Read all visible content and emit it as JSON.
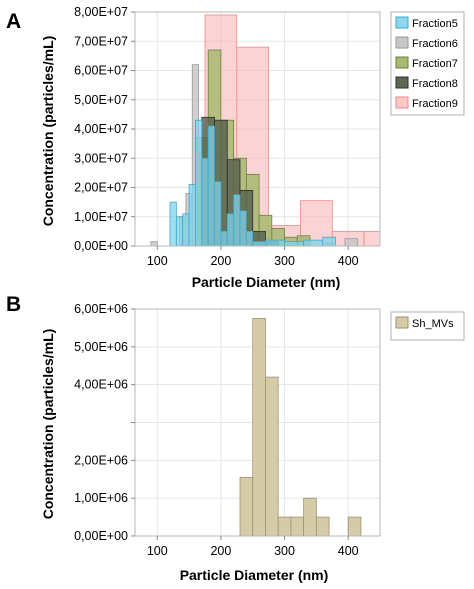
{
  "chart_data": [
    {
      "panel": "A",
      "type": "bar",
      "xlabel": "Particle Diameter (nm)",
      "ylabel": "Concentration (particles/mL)",
      "xlim": [
        65,
        450
      ],
      "ylim": [
        0,
        80000000
      ],
      "x_ticks": [
        100,
        200,
        300,
        400
      ],
      "y_ticks": [
        {
          "value": 0,
          "label": "0,00E+00"
        },
        {
          "value": 10000000,
          "label": "1,00E+07"
        },
        {
          "value": 20000000,
          "label": "2,00E+07"
        },
        {
          "value": 30000000,
          "label": "3,00E+07"
        },
        {
          "value": 40000000,
          "label": "4,00E+07"
        },
        {
          "value": 50000000,
          "label": "5,00E+07"
        },
        {
          "value": 60000000,
          "label": "6,00E+07"
        },
        {
          "value": 70000000,
          "label": "7,00E+07"
        },
        {
          "value": 80000000,
          "label": "8,00E+07"
        }
      ],
      "grid": true,
      "legend_position": "right",
      "series": [
        {
          "name": "Fraction9",
          "fill": "#f6b0b0",
          "stroke": "#f08a8a",
          "opacity": 0.55,
          "bins": [
            {
              "x0": 175,
              "x1": 225,
              "y": 79000000
            },
            {
              "x0": 225,
              "x1": 275,
              "y": 68000000
            },
            {
              "x0": 275,
              "x1": 325,
              "y": 7000000
            },
            {
              "x0": 325,
              "x1": 375,
              "y": 15500000
            },
            {
              "x0": 375,
              "x1": 425,
              "y": 5000000
            },
            {
              "x0": 425,
              "x1": 450,
              "y": 5000000
            }
          ]
        },
        {
          "name": "Fraction6",
          "fill": "#c4c4c4",
          "stroke": "#9a9a9a",
          "opacity": 0.8,
          "bins": [
            {
              "x0": 90,
              "x1": 100,
              "y": 1500000
            },
            {
              "x0": 135,
              "x1": 145,
              "y": 10000000
            },
            {
              "x0": 145,
              "x1": 155,
              "y": 18000000
            },
            {
              "x0": 155,
              "x1": 165,
              "y": 62000000
            },
            {
              "x0": 165,
              "x1": 175,
              "y": 32000000
            },
            {
              "x0": 175,
              "x1": 185,
              "y": 18000000
            },
            {
              "x0": 185,
              "x1": 195,
              "y": 9000000
            },
            {
              "x0": 195,
              "x1": 205,
              "y": 6000000
            },
            {
              "x0": 205,
              "x1": 215,
              "y": 4000000
            },
            {
              "x0": 215,
              "x1": 225,
              "y": 3000000
            },
            {
              "x0": 225,
              "x1": 255,
              "y": 2500000
            },
            {
              "x0": 255,
              "x1": 285,
              "y": 2000000
            },
            {
              "x0": 285,
              "x1": 305,
              "y": 1000000
            },
            {
              "x0": 365,
              "x1": 375,
              "y": 1000000
            },
            {
              "x0": 395,
              "x1": 415,
              "y": 2500000
            }
          ]
        },
        {
          "name": "Fraction7",
          "fill": "#a3b66a",
          "stroke": "#6f7f3a",
          "opacity": 0.8,
          "bins": [
            {
              "x0": 160,
              "x1": 180,
              "y": 37000000
            },
            {
              "x0": 180,
              "x1": 200,
              "y": 67000000
            },
            {
              "x0": 200,
              "x1": 220,
              "y": 43000000
            },
            {
              "x0": 220,
              "x1": 240,
              "y": 30000000
            },
            {
              "x0": 240,
              "x1": 260,
              "y": 24500000
            },
            {
              "x0": 260,
              "x1": 280,
              "y": 10500000
            },
            {
              "x0": 280,
              "x1": 300,
              "y": 6000000
            },
            {
              "x0": 300,
              "x1": 320,
              "y": 3000000
            },
            {
              "x0": 320,
              "x1": 340,
              "y": 3500000
            }
          ]
        },
        {
          "name": "Fraction8",
          "fill": "#555f4b",
          "stroke": "#2e2e2e",
          "opacity": 0.8,
          "bins": [
            {
              "x0": 170,
              "x1": 190,
              "y": 44000000
            },
            {
              "x0": 190,
              "x1": 210,
              "y": 43000000
            },
            {
              "x0": 210,
              "x1": 230,
              "y": 29500000
            },
            {
              "x0": 230,
              "x1": 250,
              "y": 19000000
            },
            {
              "x0": 250,
              "x1": 270,
              "y": 5000000
            },
            {
              "x0": 270,
              "x1": 290,
              "y": 1500000
            }
          ]
        },
        {
          "name": "Fraction5",
          "fill": "#7fd3ec",
          "stroke": "#3aaad0",
          "opacity": 0.75,
          "bins": [
            {
              "x0": 120,
              "x1": 130,
              "y": 15000000
            },
            {
              "x0": 130,
              "x1": 140,
              "y": 10000000
            },
            {
              "x0": 140,
              "x1": 150,
              "y": 11000000
            },
            {
              "x0": 150,
              "x1": 160,
              "y": 21000000
            },
            {
              "x0": 160,
              "x1": 170,
              "y": 43000000
            },
            {
              "x0": 170,
              "x1": 180,
              "y": 30000000
            },
            {
              "x0": 180,
              "x1": 190,
              "y": 41000000
            },
            {
              "x0": 190,
              "x1": 200,
              "y": 22000000
            },
            {
              "x0": 200,
              "x1": 210,
              "y": 5000000
            },
            {
              "x0": 210,
              "x1": 220,
              "y": 11000000
            },
            {
              "x0": 220,
              "x1": 230,
              "y": 17500000
            },
            {
              "x0": 230,
              "x1": 240,
              "y": 12000000
            },
            {
              "x0": 240,
              "x1": 250,
              "y": 5000000
            },
            {
              "x0": 250,
              "x1": 270,
              "y": 1500000
            },
            {
              "x0": 270,
              "x1": 300,
              "y": 2000000
            },
            {
              "x0": 300,
              "x1": 330,
              "y": 1500000
            },
            {
              "x0": 330,
              "x1": 360,
              "y": 2000000
            },
            {
              "x0": 360,
              "x1": 380,
              "y": 3000000
            }
          ]
        }
      ],
      "legend_order": [
        "Fraction5",
        "Fraction6",
        "Fraction7",
        "Fraction8",
        "Fraction9"
      ]
    },
    {
      "panel": "B",
      "type": "bar",
      "xlabel": "Particle Diameter (nm)",
      "ylabel": "Concentration (particles/mL)",
      "xlim": [
        65,
        450
      ],
      "ylim": [
        0,
        6000000
      ],
      "x_ticks": [
        100,
        200,
        300,
        400
      ],
      "y_ticks": [
        {
          "value": 0,
          "label": "0,00E+00"
        },
        {
          "value": 1000000,
          "label": "1,00E+06"
        },
        {
          "value": 2000000,
          "label": "2,00E+06"
        },
        {
          "value": 3000000,
          "label": ""
        },
        {
          "value": 4000000,
          "label": "4,00E+06"
        },
        {
          "value": 5000000,
          "label": "5,00E+06"
        },
        {
          "value": 6000000,
          "label": "6,00E+06"
        }
      ],
      "grid": true,
      "legend_position": "right",
      "series": [
        {
          "name": "Sh_MVs",
          "fill": "#d6cba7",
          "stroke": "#9c9272",
          "opacity": 1,
          "bins": [
            {
              "x0": 230,
              "x1": 250,
              "y": 1550000
            },
            {
              "x0": 250,
              "x1": 270,
              "y": 5750000
            },
            {
              "x0": 270,
              "x1": 290,
              "y": 4200000
            },
            {
              "x0": 290,
              "x1": 310,
              "y": 500000
            },
            {
              "x0": 310,
              "x1": 330,
              "y": 500000
            },
            {
              "x0": 330,
              "x1": 350,
              "y": 1000000
            },
            {
              "x0": 350,
              "x1": 370,
              "y": 500000
            },
            {
              "x0": 400,
              "x1": 420,
              "y": 500000
            }
          ]
        }
      ],
      "legend_order": [
        "Sh_MVs"
      ]
    }
  ]
}
